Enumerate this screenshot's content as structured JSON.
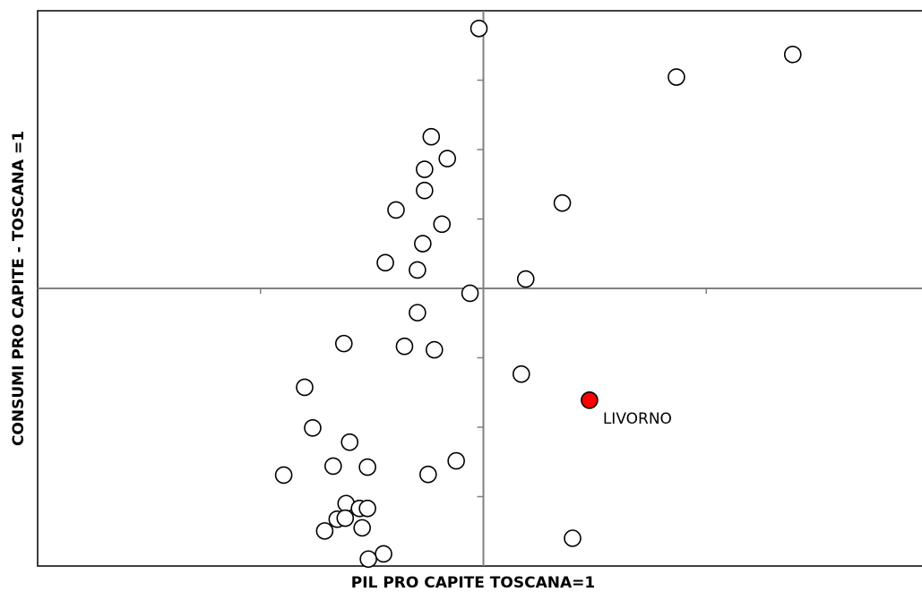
{
  "chart_data": {
    "type": "scatter",
    "xlabel": "PIL PRO CAPITE TOSCANA=1",
    "ylabel": "CONSUMI  PRO CAPITE - TOSCANA =1",
    "xlim": [
      0,
      2
    ],
    "ylim": [
      -0.8,
      0.8
    ],
    "center": [
      1,
      0
    ],
    "x_tick_step": 0.5,
    "y_tick_step": 0.2,
    "grid": false,
    "point_fill": "#ffffff",
    "point_stroke": "#000000",
    "highlight_fill": "#ff0000",
    "axis_color": "#808080",
    "series": [
      {
        "points": [
          {
            "x": 0.99,
            "y": 0.749
          },
          {
            "x": 1.694,
            "y": 0.674
          },
          {
            "x": 1.433,
            "y": 0.609
          },
          {
            "x": 0.883,
            "y": 0.437
          },
          {
            "x": 0.919,
            "y": 0.374
          },
          {
            "x": 0.868,
            "y": 0.343
          },
          {
            "x": 0.868,
            "y": 0.282
          },
          {
            "x": 1.177,
            "y": 0.246
          },
          {
            "x": 0.804,
            "y": 0.226
          },
          {
            "x": 0.907,
            "y": 0.185
          },
          {
            "x": 0.864,
            "y": 0.129
          },
          {
            "x": 0.78,
            "y": 0.074
          },
          {
            "x": 0.852,
            "y": 0.053
          },
          {
            "x": 1.095,
            "y": 0.027
          },
          {
            "x": 0.97,
            "y": -0.014
          },
          {
            "x": 0.852,
            "y": -0.07
          },
          {
            "x": 0.687,
            "y": -0.159
          },
          {
            "x": 0.823,
            "y": -0.167
          },
          {
            "x": 0.89,
            "y": -0.177
          },
          {
            "x": 1.085,
            "y": -0.247
          },
          {
            "x": 0.599,
            "y": -0.285
          },
          {
            "x": 0.617,
            "y": -0.402
          },
          {
            "x": 0.7,
            "y": -0.443
          },
          {
            "x": 0.939,
            "y": -0.497
          },
          {
            "x": 0.663,
            "y": -0.512
          },
          {
            "x": 0.74,
            "y": -0.515
          },
          {
            "x": 0.876,
            "y": -0.536
          },
          {
            "x": 0.552,
            "y": -0.538
          },
          {
            "x": 0.692,
            "y": -0.62
          },
          {
            "x": 0.722,
            "y": -0.634
          },
          {
            "x": 0.74,
            "y": -0.634
          },
          {
            "x": 0.672,
            "y": -0.665
          },
          {
            "x": 0.69,
            "y": -0.662
          },
          {
            "x": 0.728,
            "y": -0.69
          },
          {
            "x": 0.644,
            "y": -0.699
          },
          {
            "x": 1.2,
            "y": -0.72
          },
          {
            "x": 0.776,
            "y": -0.765
          },
          {
            "x": 0.742,
            "y": -0.78
          }
        ]
      },
      {
        "name": "LIVORNO",
        "highlight": true,
        "points": [
          {
            "x": 1.238,
            "y": -0.322
          }
        ]
      }
    ],
    "annotations": [
      {
        "text": "LIVORNO",
        "x": 1.268,
        "y": -0.39
      }
    ]
  }
}
